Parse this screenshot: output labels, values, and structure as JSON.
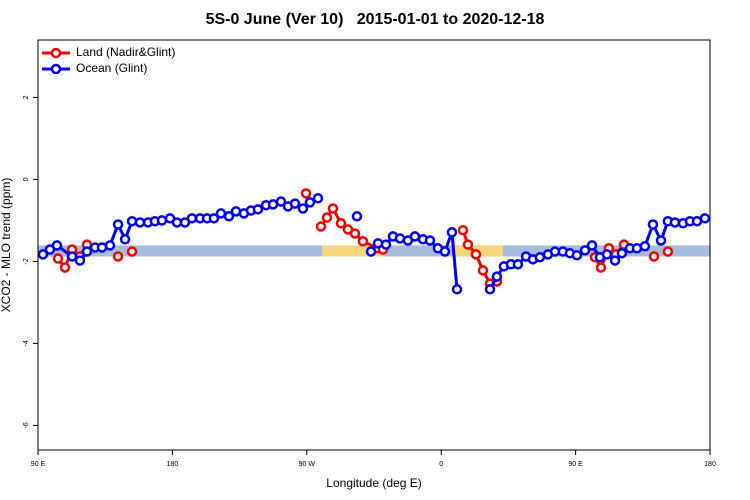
{
  "chart_data": {
    "type": "line",
    "title": "5S-0 June (Ver 10)   2015-01-01 to 2020-12-18",
    "x_label": "Longitude (deg E)",
    "y_label": "XCO2 - MLO trend (ppm)",
    "xlim": [
      90,
      540
    ],
    "ylim": [
      -6.6,
      3.4
    ],
    "xticks": [
      {
        "value": 90,
        "label": "90 E"
      },
      180,
      {
        "value": 270,
        "label": "90 W"
      },
      {
        "value": 360,
        "label": "0"
      },
      {
        "value": 450,
        "label": "90 E"
      },
      {
        "value": 540,
        "label": "180"
      }
    ],
    "yticks": [
      -6,
      -4,
      -2,
      0,
      2
    ],
    "legend": "top-left",
    "bands": [
      {
        "color": "#a6bcdc",
        "x": [
          90,
          540
        ],
        "y": [
          -1.88,
          -1.61
        ]
      },
      {
        "color": "#f8d77c",
        "x": [
          280.2,
          322.3
        ],
        "y": [
          -1.88,
          -1.61
        ]
      },
      {
        "color": "#f8d77c",
        "x": [
          369.2,
          401.4
        ],
        "y": [
          -1.88,
          -1.61
        ]
      }
    ],
    "series": [
      {
        "name": "Land (Nadir&Glint)",
        "color": "#ee0000",
        "x": [
          103.4,
          108.1,
          112.8,
          118.1,
          122.8,
          128.2,
          143.6,
          148.3,
          153.0,
          160.0,
          269.5,
          274.0,
          279.5,
          283.5,
          287.5,
          292.9,
          297.6,
          302.3,
          307.6,
          317.7,
          321.0,
          350.0,
          374.6,
          377.9,
          383.3,
          388.0,
          392.7,
          397.3,
          430.0,
          463.0,
          467.0,
          472.3,
          477.0,
          482.4,
          490.0,
          502.5,
          507.0,
          511.8
        ],
        "values": [
          -1.93,
          -2.15,
          -1.71,
          -1.88,
          -1.59,
          null,
          -1.88,
          null,
          -1.76,
          null,
          -0.34,
          null,
          -1.15,
          -0.93,
          -0.71,
          -1.07,
          -1.22,
          -1.32,
          -1.51,
          -1.68,
          -1.71,
          null,
          -1.24,
          -1.59,
          -1.83,
          -2.22,
          -2.54,
          -2.49,
          null,
          -1.9,
          -2.15,
          -1.68,
          -1.83,
          -1.59,
          null,
          -1.88,
          null,
          -1.76
        ]
      },
      {
        "name": "Ocean (Glint)",
        "color": "#0000ee",
        "x": [
          93.3,
          98.0,
          102.7,
          112.8,
          118.1,
          122.8,
          128.2,
          132.9,
          138.2,
          143.6,
          148.3,
          153.0,
          158.3,
          163.7,
          168.3,
          173.0,
          178.4,
          183.1,
          188.4,
          193.1,
          198.5,
          203.2,
          207.8,
          212.5,
          217.9,
          222.6,
          227.9,
          232.6,
          237.3,
          242.7,
          247.4,
          252.7,
          257.4,
          262.1,
          267.4,
          272.1,
          277.5,
          290.0,
          303.6,
          308.0,
          313.0,
          317.7,
          323.0,
          327.7,
          332.4,
          337.7,
          342.4,
          347.8,
          352.5,
          357.8,
          362.5,
          367.2,
          370.6,
          380.0,
          392.7,
          397.3,
          402.0,
          406.7,
          411.4,
          416.8,
          421.4,
          426.1,
          431.5,
          436.2,
          441.5,
          446.2,
          450.9,
          456.3,
          461.0,
          466.3,
          471.0,
          476.4,
          481.0,
          486.4,
          491.1,
          496.4,
          501.8,
          507.2,
          511.8,
          516.5,
          521.9,
          526.6,
          531.3,
          536.6
        ],
        "values": [
          -1.83,
          -1.71,
          -1.61,
          -1.88,
          -1.98,
          -1.76,
          -1.66,
          -1.66,
          -1.61,
          -1.1,
          -1.46,
          -1.02,
          -1.05,
          -1.05,
          -1.02,
          -1.0,
          -0.95,
          -1.05,
          -1.05,
          -0.95,
          -0.95,
          -0.95,
          -0.95,
          -0.83,
          -0.9,
          -0.78,
          -0.83,
          -0.76,
          -0.73,
          -0.63,
          -0.61,
          -0.54,
          -0.66,
          -0.59,
          -0.71,
          -0.56,
          -0.46,
          null,
          -0.9,
          null,
          -1.76,
          -1.56,
          -1.59,
          -1.39,
          -1.44,
          -1.49,
          -1.39,
          -1.46,
          -1.49,
          -1.68,
          -1.76,
          -1.29,
          -2.68,
          null,
          -2.68,
          -2.37,
          -2.12,
          -2.07,
          -2.07,
          -1.88,
          -1.95,
          -1.9,
          -1.83,
          -1.76,
          -1.76,
          -1.8,
          -1.85,
          -1.73,
          -1.61,
          -1.9,
          -1.83,
          -1.98,
          -1.8,
          -1.68,
          -1.68,
          -1.63,
          -1.1,
          -1.49,
          -1.02,
          -1.05,
          -1.07,
          -1.02,
          -1.02,
          -0.95
        ]
      }
    ]
  }
}
